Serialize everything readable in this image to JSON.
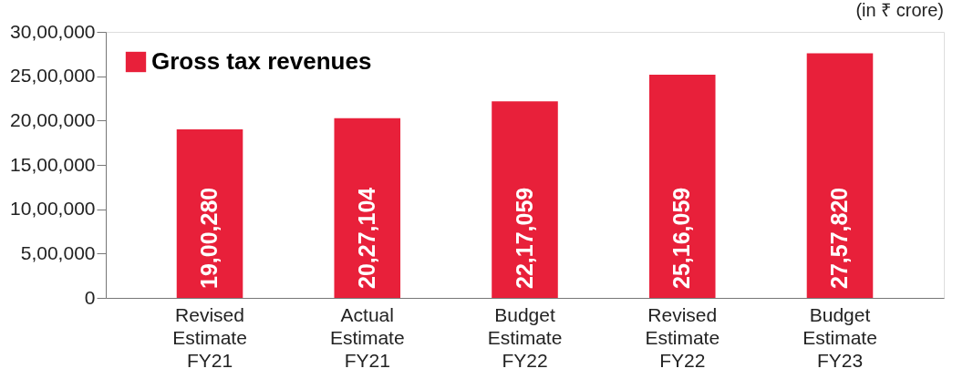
{
  "chart_data": {
    "type": "bar",
    "categories": [
      "Revised Estimate FY21",
      "Actual Estimate FY21",
      "Budget Estimate FY22",
      "Revised Estimate FY22",
      "Budget Estimate FY23"
    ],
    "series": [
      {
        "name": "Gross tax revenues",
        "color": "#e8203a",
        "values": [
          1900280,
          2027104,
          2217059,
          2516059,
          2757820
        ],
        "value_labels": [
          "19,00,280",
          "20,27,104",
          "22,17,059",
          "25,16,059",
          "27,57,820"
        ]
      }
    ],
    "ylim": [
      0,
      3000000
    ],
    "yticks": [
      0,
      {
        "value": 500000,
        "label": "5,00,000"
      },
      {
        "value": 1000000,
        "label": "10,00,000"
      },
      {
        "value": 1500000,
        "label": "15,00,000"
      },
      {
        "value": 2000000,
        "label": "20,00,000"
      },
      {
        "value": 2500000,
        "label": "25,00,000"
      },
      {
        "value": 3000000,
        "label": "30,00,000"
      }
    ],
    "annotations": [
      "(in ₹ crore)"
    ],
    "legend": "top left",
    "grid": false
  }
}
